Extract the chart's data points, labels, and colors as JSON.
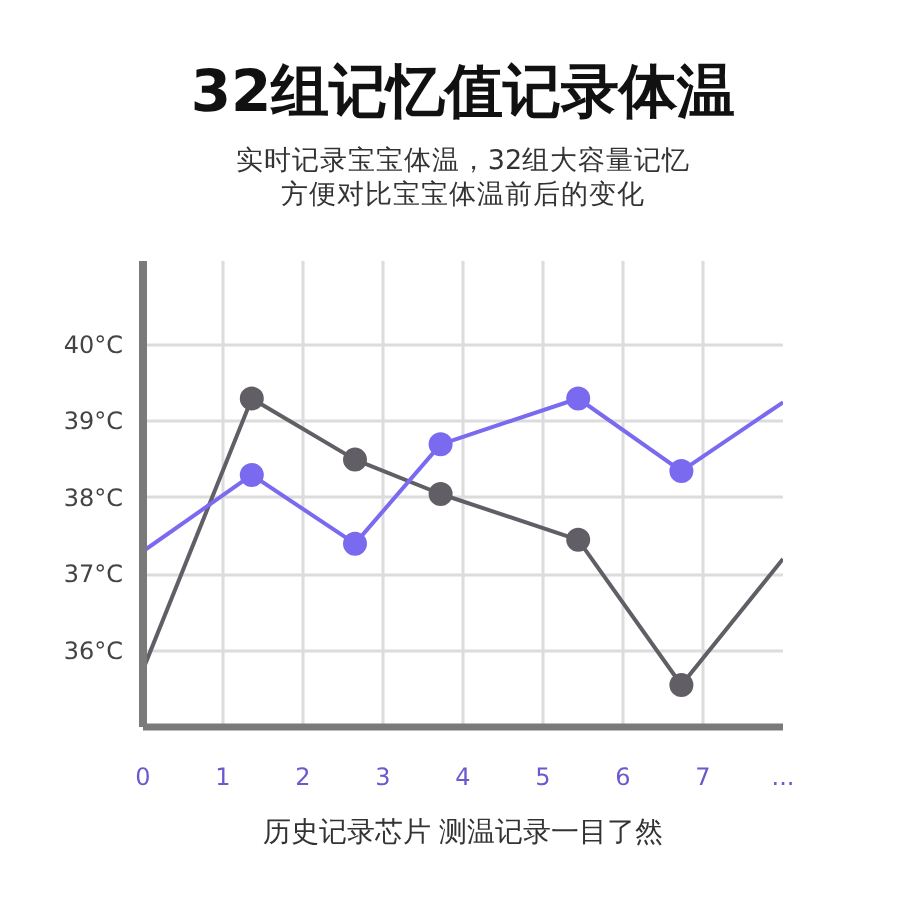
{
  "chart_data": {
    "type": "line",
    "title": "32组记忆值记录体温",
    "subtitle": "实时记录宝宝体温，32组大容量记忆方便对比宝宝体温前后的变化",
    "xlabel": "历史记录芯片 测温记录一目了然",
    "xlim": [
      0,
      8
    ],
    "xticks": [
      0,
      1,
      2,
      3,
      4,
      5,
      6,
      7,
      {
        "value": 8,
        "label": "..."
      }
    ],
    "ylim": [
      35,
      41.1
    ],
    "yticks": [
      {
        "value": 36,
        "label": "36°C"
      },
      {
        "value": 37,
        "label": "37°C"
      },
      {
        "value": 38,
        "label": "38°C"
      },
      {
        "value": 39,
        "label": "39°C"
      },
      {
        "value": 40,
        "label": "40°C"
      }
    ],
    "grid": true,
    "series": [
      {
        "color": "#625e66",
        "marker": "none",
        "x": [
          0,
          1.36,
          2.65,
          3.72,
          5.44,
          6.73,
          8
        ],
        "values": [
          35.75,
          39.3,
          38.5,
          38.05,
          37.45,
          35.55,
          37.2
        ]
      },
      {
        "type": "scatter",
        "color": "#625e66",
        "marker": "circle",
        "x": [
          1.36,
          2.65,
          3.72,
          5.44,
          6.73
        ],
        "values": [
          39.3,
          38.5,
          38.05,
          37.45,
          35.55
        ]
      },
      {
        "color": "#7a6af0",
        "marker": "none",
        "x": [
          0,
          1.36,
          2.65,
          3.72,
          5.44,
          6.73,
          8
        ],
        "values": [
          37.3,
          38.3,
          37.4,
          38.7,
          39.3,
          38.35,
          39.25
        ]
      },
      {
        "type": "scatter",
        "color": "#7a6af0",
        "marker": "circle",
        "x": [
          1.36,
          2.65,
          3.72,
          5.44,
          6.73
        ],
        "values": [
          38.3,
          37.4,
          38.7,
          39.3,
          38.35
        ]
      }
    ]
  }
}
